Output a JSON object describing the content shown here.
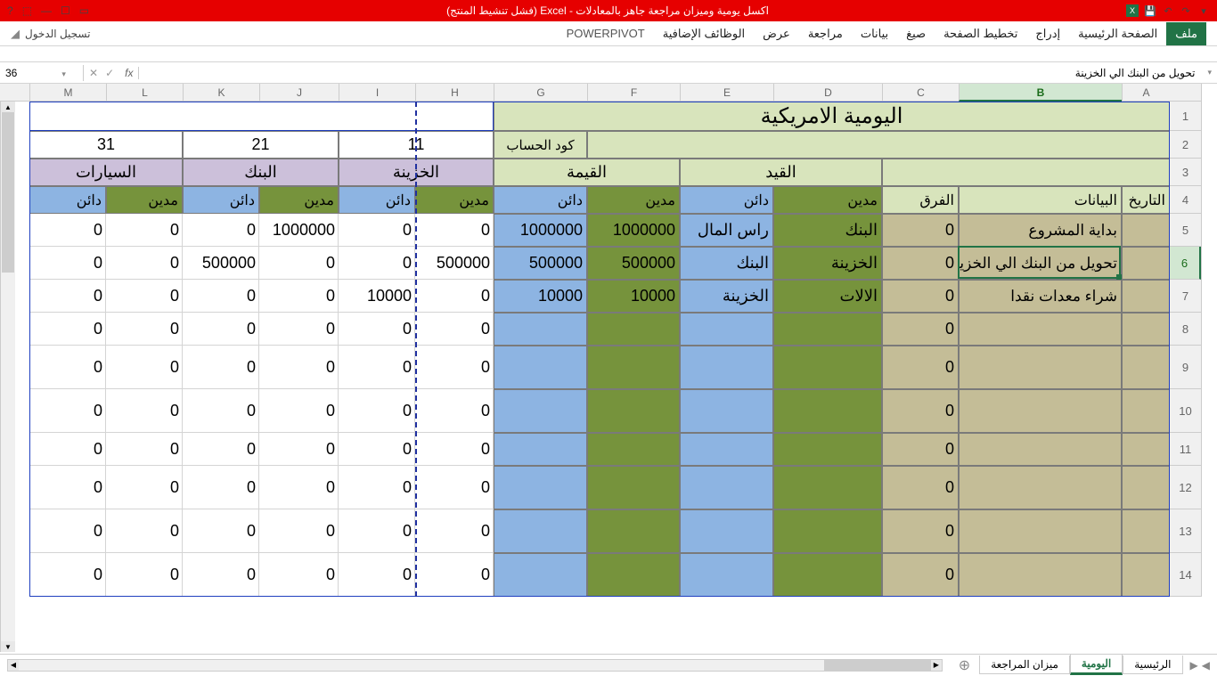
{
  "app": {
    "title": "اكسل يومية وميزان  مراجعة  جاهز بالمعادلات - Excel (فشل تنشيط المنتج)"
  },
  "ribbon": {
    "file": "ملف",
    "tabs": [
      "الصفحة الرئيسية",
      "إدراج",
      "تخطيط الصفحة",
      "صيغ",
      "بيانات",
      "مراجعة",
      "عرض",
      "الوظائف الإضافية"
    ],
    "powerpivot": "POWERPIVOT",
    "signin": "تسجيل الدخول"
  },
  "formula": {
    "nameBox": "36",
    "value": "تحويل من البنك الي الخزينة"
  },
  "columns": {
    "letters": [
      "A",
      "B",
      "C",
      "D",
      "E",
      "F",
      "G",
      "H",
      "I",
      "J",
      "K",
      "L",
      "M"
    ],
    "widths": {
      "A": 54,
      "B": 183,
      "C": 86,
      "D": 122,
      "E": 105,
      "F": 104,
      "G": 105,
      "H": 88,
      "I": 86,
      "J": 89,
      "K": 86,
      "L": 86,
      "M": 86
    },
    "selected": "B"
  },
  "rows": {
    "heights": {
      "1": 33,
      "2": 31,
      "3": 31,
      "4": 31,
      "5": 37,
      "6": 37,
      "7": 37,
      "8": 37,
      "9": 49,
      "10": 49,
      "11": 37,
      "12": 49,
      "13": 49,
      "14": 49
    },
    "selected": 6,
    "count": 14
  },
  "colors": {
    "titleBg": "#d8e4bc",
    "lightGreen": "#d8e4bc",
    "purple": "#ccc0da",
    "darkGreen": "#76933c",
    "olive": "#948a54",
    "midGreen": "#9bbb59",
    "blue": "#8db4e2",
    "tan": "#c4bd97",
    "white": "#ffffff"
  },
  "header": {
    "title": "اليومية الامريكية",
    "accountCode": "كود الحساب",
    "row2": {
      "H": "",
      "I": "11",
      "J": "",
      "K": "21",
      "L": "",
      "M": "31"
    },
    "row3": {
      "B": "",
      "C": "",
      "DE": "القيد",
      "FG": "القيمة",
      "HI": "الخزينة",
      "JK": "البنك",
      "LM": "السيارات"
    },
    "row4": {
      "A": "التاريخ",
      "B": "البيانات",
      "C": "الفرق",
      "D": "مدين",
      "E": "دائن",
      "F": "مدين",
      "G": "دائن",
      "H": "مدين",
      "I": "دائن",
      "J": "مدين",
      "K": "دائن",
      "L": "مدين",
      "M": "دائن"
    }
  },
  "data": [
    {
      "B": "بداية المشروع",
      "C": "0",
      "D": "البنك",
      "E": "راس المال",
      "F": "1000000",
      "G": "1000000",
      "H": "0",
      "I": "0",
      "J": "1000000",
      "K": "0",
      "L": "0",
      "M": "0"
    },
    {
      "B": "تحويل من البنك الي الخزينة",
      "C": "0",
      "D": "الخزينة",
      "E": "البنك",
      "F": "500000",
      "G": "500000",
      "H": "500000",
      "I": "0",
      "J": "0",
      "K": "500000",
      "L": "0",
      "M": "0"
    },
    {
      "B": "شراء معدات نقدا",
      "C": "0",
      "D": "الالات",
      "E": "الخزينة",
      "F": "10000",
      "G": "10000",
      "H": "0",
      "I": "10000",
      "J": "0",
      "K": "0",
      "L": "0",
      "M": "0"
    },
    {
      "B": "",
      "C": "0",
      "D": "",
      "E": "",
      "F": "",
      "G": "",
      "H": "0",
      "I": "0",
      "J": "0",
      "K": "0",
      "L": "0",
      "M": "0"
    },
    {
      "B": "",
      "C": "0",
      "D": "",
      "E": "",
      "F": "",
      "G": "",
      "H": "0",
      "I": "0",
      "J": "0",
      "K": "0",
      "L": "0",
      "M": "0"
    },
    {
      "B": "",
      "C": "0",
      "D": "",
      "E": "",
      "F": "",
      "G": "",
      "H": "0",
      "I": "0",
      "J": "0",
      "K": "0",
      "L": "0",
      "M": "0"
    },
    {
      "B": "",
      "C": "0",
      "D": "",
      "E": "",
      "F": "",
      "G": "",
      "H": "0",
      "I": "0",
      "J": "0",
      "K": "0",
      "L": "0",
      "M": "0"
    },
    {
      "B": "",
      "C": "0",
      "D": "",
      "E": "",
      "F": "",
      "G": "",
      "H": "0",
      "I": "0",
      "J": "0",
      "K": "0",
      "L": "0",
      "M": "0"
    },
    {
      "B": "",
      "C": "0",
      "D": "",
      "E": "",
      "F": "",
      "G": "",
      "H": "0",
      "I": "0",
      "J": "0",
      "K": "0",
      "L": "0",
      "M": "0"
    },
    {
      "B": "",
      "C": "0",
      "D": "",
      "E": "",
      "F": "",
      "G": "",
      "H": "0",
      "I": "0",
      "J": "0",
      "K": "0",
      "L": "0",
      "M": "0"
    }
  ],
  "sheets": {
    "tabs": [
      "الرئيسية",
      "اليومية",
      "ميزان المراجعة"
    ],
    "active": 1
  }
}
